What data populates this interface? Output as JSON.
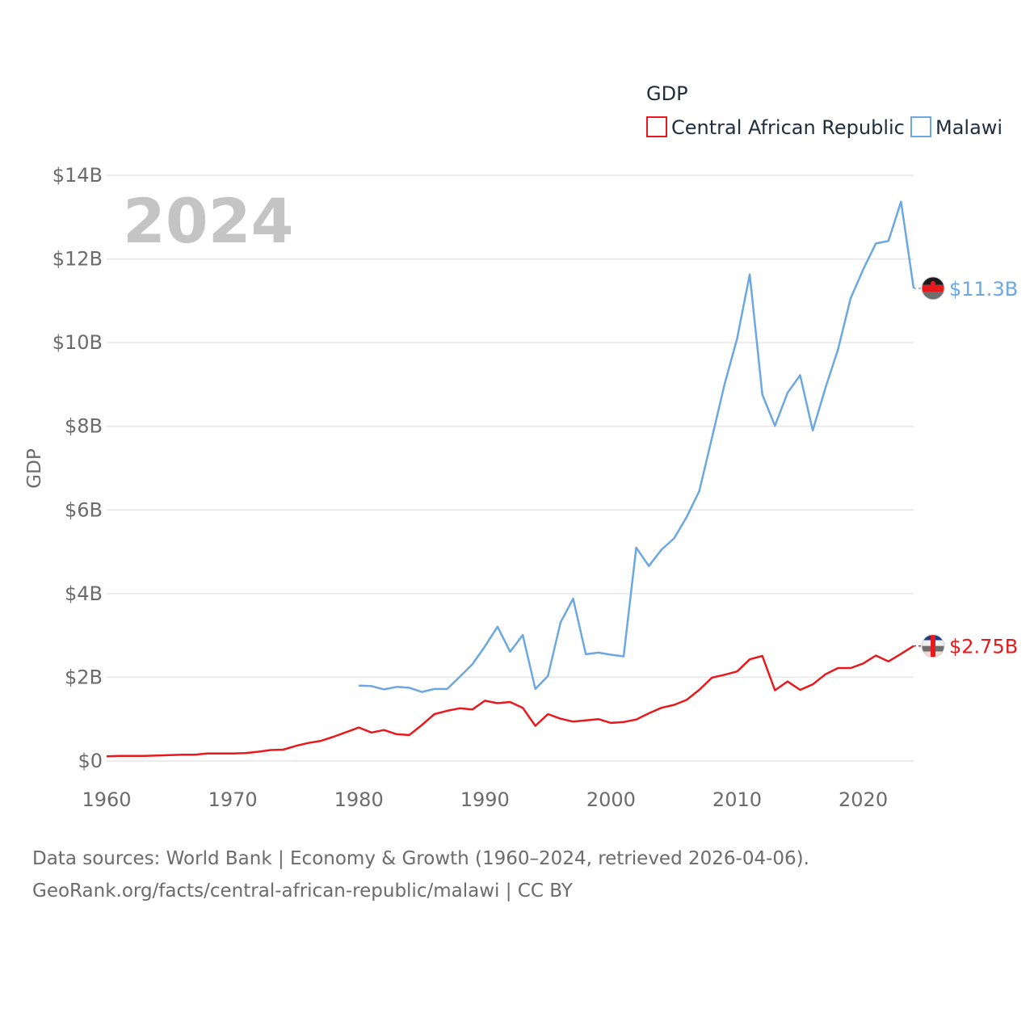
{
  "chart_data": {
    "type": "line",
    "legend_title": "GDP",
    "ylabel": "GDP",
    "year_label": "2024",
    "x_ticks": [
      "1960",
      "1970",
      "1980",
      "1990",
      "2000",
      "2010",
      "2020"
    ],
    "y_ticks": [
      "$0",
      "$2B",
      "$4B",
      "$6B",
      "$8B",
      "$10B",
      "$12B",
      "$14B"
    ],
    "x_range": [
      1960,
      2024
    ],
    "y_range": [
      0,
      14
    ],
    "y_units": "billions USD",
    "series": [
      {
        "name": "Central African Republic",
        "color": "#e8191c",
        "end_label": "$2.75B",
        "start_year": 1960,
        "values": [
          0.11,
          0.12,
          0.12,
          0.12,
          0.13,
          0.14,
          0.15,
          0.15,
          0.18,
          0.18,
          0.18,
          0.19,
          0.22,
          0.26,
          0.27,
          0.36,
          0.43,
          0.48,
          0.58,
          0.69,
          0.8,
          0.68,
          0.74,
          0.64,
          0.62,
          0.86,
          1.12,
          1.2,
          1.26,
          1.23,
          1.44,
          1.38,
          1.41,
          1.27,
          0.84,
          1.12,
          1.01,
          0.94,
          0.97,
          1.0,
          0.91,
          0.93,
          0.99,
          1.14,
          1.27,
          1.34,
          1.46,
          1.7,
          1.99,
          2.06,
          2.14,
          2.43,
          2.51,
          1.69,
          1.9,
          1.7,
          1.83,
          2.07,
          2.22,
          2.22,
          2.33,
          2.52,
          2.38,
          2.56,
          2.75
        ]
      },
      {
        "name": "Malawi",
        "color": "#6ba7e0",
        "end_label": "$11.3B",
        "start_year": 1980,
        "values": [
          1.8,
          1.79,
          1.71,
          1.77,
          1.75,
          1.65,
          1.72,
          1.72,
          2.01,
          2.31,
          2.74,
          3.21,
          2.61,
          3.01,
          1.72,
          2.03,
          3.31,
          3.88,
          2.55,
          2.59,
          2.54,
          2.5,
          5.1,
          4.66,
          5.05,
          5.32,
          5.83,
          6.45,
          7.72,
          9.0,
          10.1,
          11.63,
          8.76,
          8.01,
          8.8,
          9.22,
          7.9,
          8.91,
          9.83,
          11.06,
          11.75,
          12.37,
          12.43,
          13.37,
          11.3
        ]
      }
    ]
  },
  "source": {
    "line1": "Data sources: World Bank | Economy & Growth (1960–2024, retrieved 2026-04-06).",
    "line2": "GeoRank.org/facts/central-african-republic/malawi | CC BY"
  }
}
